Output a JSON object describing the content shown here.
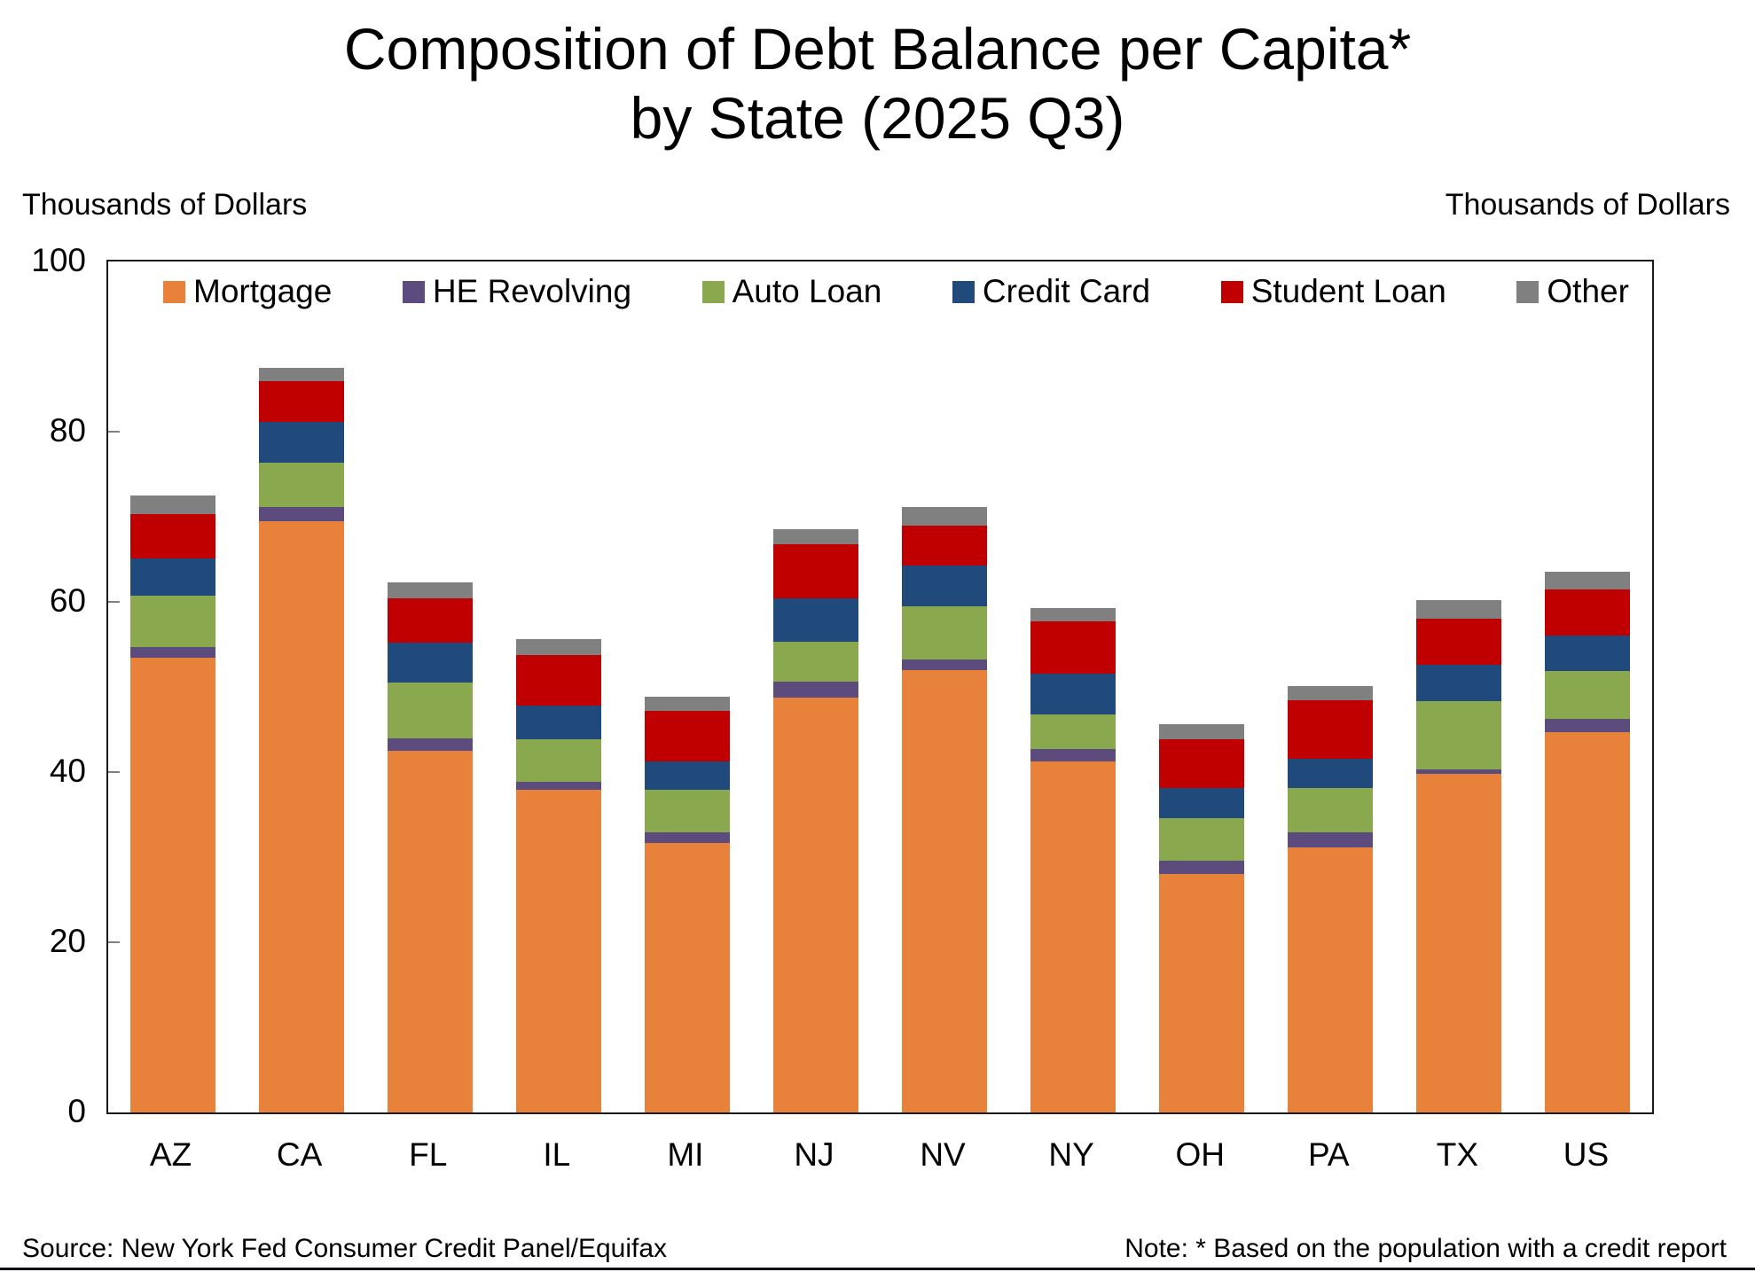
{
  "title_line1": "Composition of Debt Balance per Capita*",
  "title_line2": "by State (2025 Q3)",
  "left_axis_label": "Thousands of Dollars",
  "right_axis_label": "Thousands of Dollars",
  "footer": {
    "source": "Source: New York Fed Consumer Credit Panel/Equifax",
    "note": "Note: * Based on the population with a credit report"
  },
  "chart_data": {
    "type": "bar",
    "stacked": true,
    "title": "Composition of Debt Balance per Capita* by State (2025 Q3)",
    "ylabel": "Thousands of Dollars",
    "ylim": [
      0,
      100
    ],
    "yticks": [
      0,
      20,
      40,
      60,
      80,
      100
    ],
    "grid": false,
    "legend_position": "top-inside",
    "categories": [
      "AZ",
      "CA",
      "FL",
      "IL",
      "MI",
      "NJ",
      "NV",
      "NY",
      "OH",
      "PA",
      "TX",
      "US"
    ],
    "series": [
      {
        "name": "Mortgage",
        "color": "#E8823B",
        "values": [
          53.4,
          69.5,
          42.5,
          37.9,
          31.7,
          48.8,
          52.0,
          41.2,
          28.0,
          31.1,
          39.8,
          44.7
        ]
      },
      {
        "name": "HE Revolving",
        "color": "#5C4B7D",
        "values": [
          1.3,
          1.6,
          1.5,
          1.0,
          1.2,
          1.8,
          1.2,
          1.5,
          1.6,
          1.8,
          0.5,
          1.6
        ]
      },
      {
        "name": "Auto Loan",
        "color": "#8AA84E",
        "values": [
          6.0,
          5.3,
          6.5,
          5.0,
          5.0,
          4.7,
          6.3,
          4.1,
          5.0,
          5.2,
          8.0,
          5.6
        ]
      },
      {
        "name": "Credit Card",
        "color": "#20497C",
        "values": [
          4.4,
          4.8,
          4.7,
          3.9,
          3.4,
          5.1,
          4.8,
          4.8,
          3.5,
          3.5,
          4.3,
          4.1
        ]
      },
      {
        "name": "Student Loan",
        "color": "#C00000",
        "values": [
          5.2,
          4.7,
          5.2,
          6.0,
          5.9,
          6.4,
          4.7,
          6.1,
          5.8,
          6.8,
          5.4,
          5.5
        ]
      },
      {
        "name": "Other",
        "color": "#808080",
        "values": [
          2.2,
          1.6,
          1.9,
          1.8,
          1.7,
          1.7,
          2.2,
          1.6,
          1.7,
          1.7,
          2.2,
          2.0
        ]
      }
    ],
    "totals": [
      72.5,
      87.5,
      62.3,
      55.6,
      48.9,
      68.5,
      71.2,
      59.3,
      45.6,
      50.1,
      60.2,
      63.5
    ]
  }
}
